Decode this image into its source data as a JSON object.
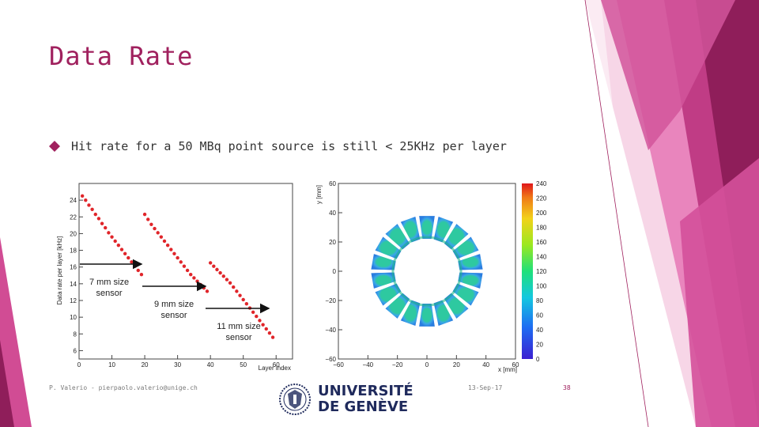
{
  "slide": {
    "title": "Data Rate",
    "bullet": "Hit rate for a 50 MBq point source is still < 25KHz per layer",
    "footer_left": "P. Valerio - pierpaolo.valerio@unige.ch",
    "footer_date": "13-Sep-17",
    "footer_page": "38",
    "university_line1": "UNIVERSITÉ",
    "university_line2": "DE GENÈVE",
    "accent_color": "#a0215e"
  },
  "chart_data": [
    {
      "type": "scatter",
      "xlabel": "Layer index",
      "ylabel": "Data rate per layer [kHz]",
      "xlim": [
        0,
        65
      ],
      "ylim": [
        5,
        26
      ],
      "xticks": [
        "0",
        "10",
        "20",
        "30",
        "40",
        "50",
        "60"
      ],
      "yticks": [
        "6",
        "8",
        "10",
        "12",
        "14",
        "16",
        "18",
        "20",
        "22",
        "24"
      ],
      "series": [
        {
          "x": [
            1,
            2,
            3,
            4,
            5,
            6,
            7,
            8,
            9,
            10,
            11,
            12,
            13,
            14,
            15,
            16,
            17,
            18,
            19
          ],
          "y": [
            24.5,
            24.0,
            23.4,
            22.9,
            22.3,
            21.8,
            21.2,
            20.7,
            20.1,
            19.6,
            19.1,
            18.6,
            18.1,
            17.6,
            17.1,
            16.6,
            16.1,
            15.6,
            15.1
          ]
        },
        {
          "x": [
            20,
            21,
            22,
            23,
            24,
            25,
            26,
            27,
            28,
            29,
            30,
            31,
            32,
            33,
            34,
            35,
            36,
            37,
            38,
            39
          ],
          "y": [
            22.3,
            21.7,
            21.1,
            20.6,
            20.1,
            19.6,
            19.1,
            18.6,
            18.1,
            17.6,
            17.1,
            16.6,
            16.1,
            15.6,
            15.1,
            14.7,
            14.3,
            13.9,
            13.5,
            13.1
          ]
        },
        {
          "x": [
            40,
            41,
            42,
            43,
            44,
            45,
            46,
            47,
            48,
            49,
            50,
            51,
            52,
            53,
            54,
            55,
            56,
            57,
            58,
            59
          ],
          "y": [
            16.5,
            16.1,
            15.7,
            15.3,
            14.9,
            14.5,
            14.1,
            13.6,
            13.1,
            12.6,
            12.1,
            11.6,
            11.1,
            10.6,
            10.1,
            9.6,
            9.1,
            8.6,
            8.1,
            7.6
          ]
        }
      ],
      "annotations": [
        "7 mm size\nsensor",
        "9 mm size\nsensor",
        "11 mm size\nsensor"
      ]
    },
    {
      "type": "heatmap",
      "xlabel": "x [mm]",
      "ylabel": "y [mm]",
      "xlim": [
        -60,
        60
      ],
      "ylim": [
        -60,
        60
      ],
      "xticks": [
        "−60",
        "−40",
        "−20",
        "0",
        "20",
        "40",
        "60"
      ],
      "yticks": [
        "60",
        "40",
        "20",
        "0",
        "−20",
        "−40",
        "−60"
      ],
      "colorbar_ticks": [
        "240",
        "220",
        "200",
        "180",
        "160",
        "140",
        "120",
        "100",
        "80",
        "60",
        "40",
        "20",
        "0"
      ],
      "ring": {
        "inner_radius": 22,
        "outer_radius": 38,
        "segments": 18
      }
    }
  ]
}
